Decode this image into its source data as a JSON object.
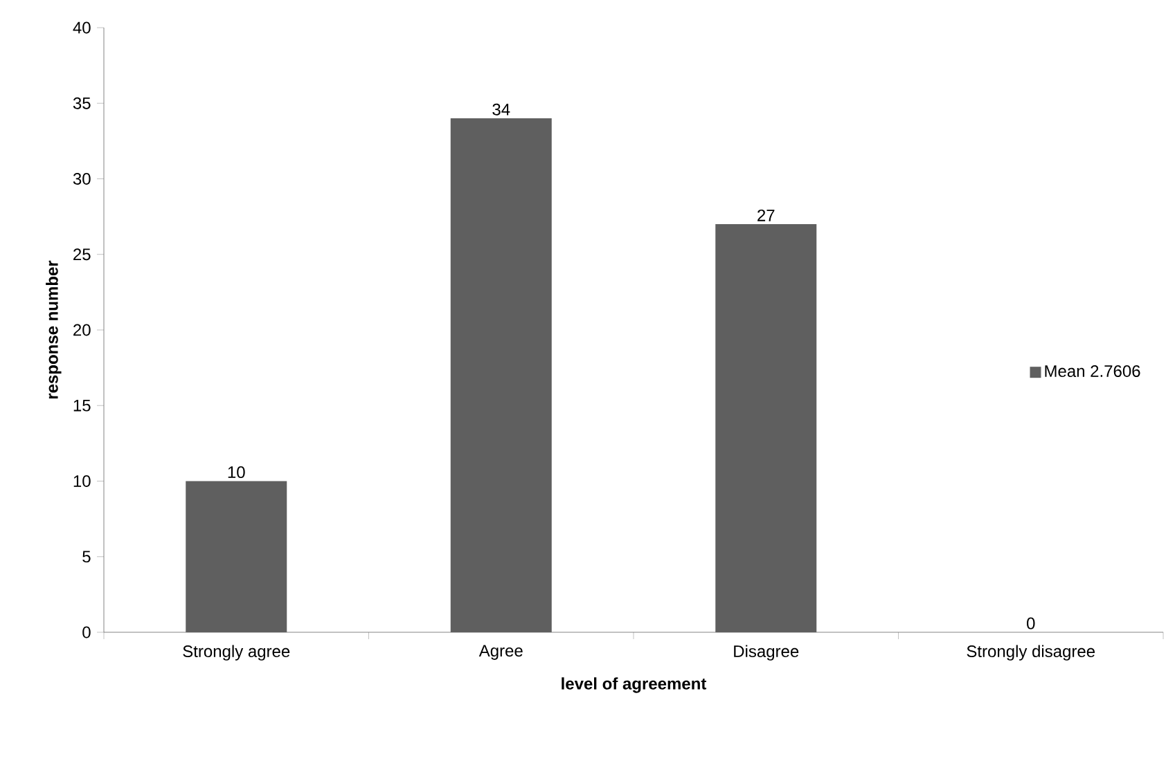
{
  "chart_data": {
    "type": "bar",
    "xlabel": "level of agreement",
    "ylabel": "response number",
    "categories": [
      "Strongly agree",
      "Agree",
      "Disagree",
      "Strongly disagree"
    ],
    "series": [
      {
        "name": "Mean 2.7606",
        "color": "#5f5f5f",
        "values": [
          10,
          34,
          27,
          0
        ]
      }
    ],
    "ylim": [
      0,
      40
    ],
    "yticks": [
      0,
      5,
      10,
      15,
      20,
      25,
      30,
      35,
      40
    ],
    "data_labels": true,
    "legend": "right"
  }
}
